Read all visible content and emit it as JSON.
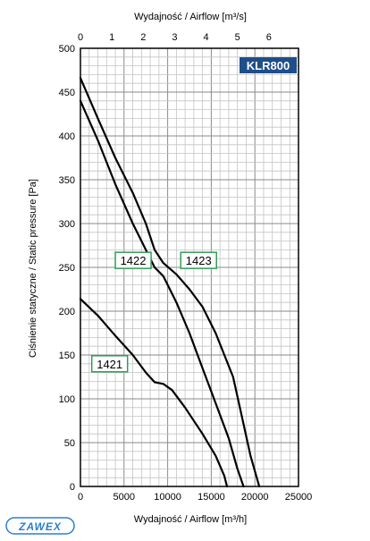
{
  "chart_data": {
    "type": "line",
    "model": "KLR800",
    "xlabel": "Wydajność / Airflow [m³/h]",
    "x2label": "Wydajność / Airflow [m³/s]",
    "ylabel": "Ciśnienie statyczne / Static pressure [Pa]",
    "xlim": [
      0,
      25000
    ],
    "ylim": [
      0,
      500
    ],
    "x2lim": [
      0,
      6.944
    ],
    "xticks": [
      0,
      5000,
      10000,
      15000,
      20000,
      25000
    ],
    "yticks": [
      0,
      50,
      100,
      150,
      200,
      250,
      300,
      350,
      400,
      450,
      500
    ],
    "x2ticks": [
      0,
      1,
      2,
      3,
      4,
      5,
      6
    ],
    "grid": true,
    "series": [
      {
        "name": "1421",
        "label_at": [
          1300,
          140
        ],
        "points": [
          [
            0,
            214
          ],
          [
            2000,
            195
          ],
          [
            4000,
            172
          ],
          [
            6000,
            150
          ],
          [
            7500,
            130
          ],
          [
            8500,
            119
          ],
          [
            9500,
            117
          ],
          [
            10500,
            110
          ],
          [
            12000,
            90
          ],
          [
            14000,
            60
          ],
          [
            15500,
            35
          ],
          [
            16500,
            12
          ],
          [
            16800,
            0
          ]
        ]
      },
      {
        "name": "1422",
        "label_at": [
          4000,
          258
        ],
        "points": [
          [
            0,
            440
          ],
          [
            2000,
            395
          ],
          [
            4000,
            345
          ],
          [
            6000,
            300
          ],
          [
            7500,
            270
          ],
          [
            8500,
            250
          ],
          [
            9500,
            240
          ],
          [
            11000,
            210
          ],
          [
            12500,
            175
          ],
          [
            14000,
            135
          ],
          [
            15500,
            95
          ],
          [
            17000,
            55
          ],
          [
            18000,
            20
          ],
          [
            18700,
            0
          ]
        ]
      },
      {
        "name": "1423",
        "label_at": [
          11500,
          258
        ],
        "points": [
          [
            0,
            466
          ],
          [
            2000,
            420
          ],
          [
            4000,
            375
          ],
          [
            6000,
            335
          ],
          [
            7500,
            300
          ],
          [
            8500,
            270
          ],
          [
            9500,
            255
          ],
          [
            11000,
            242
          ],
          [
            12500,
            225
          ],
          [
            14000,
            205
          ],
          [
            15500,
            175
          ],
          [
            17500,
            125
          ],
          [
            18500,
            80
          ],
          [
            19500,
            35
          ],
          [
            20500,
            0
          ]
        ]
      }
    ]
  },
  "brand": {
    "name": "ZAWEX"
  }
}
